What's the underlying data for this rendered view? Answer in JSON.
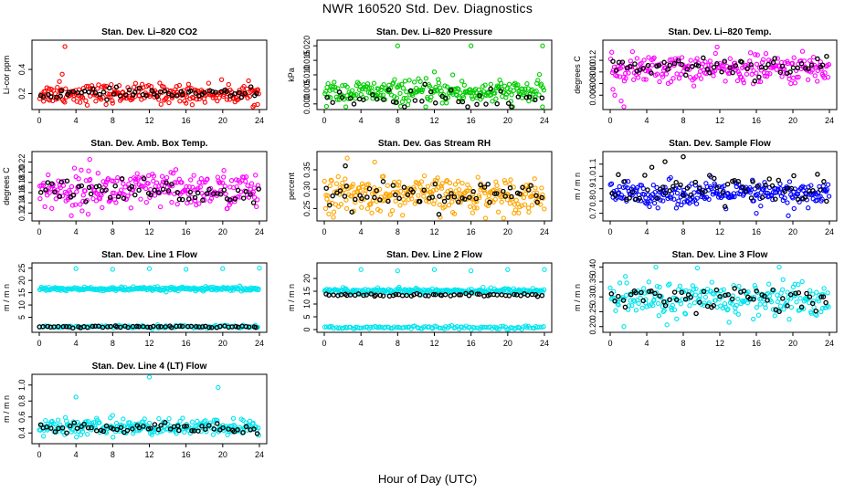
{
  "title": "NWR  160520  Std. Dev. Diagnostics",
  "xlabel": "Hour of Day (UTC)",
  "chart_data": [
    {
      "type": "scatter",
      "title": "Stan. Dev. Li–820 CO2",
      "ylabel": "Li-cor ppm",
      "xlim": [
        0,
        24
      ],
      "ylim": [
        0.09,
        0.62
      ],
      "xticks": [
        0,
        4,
        8,
        12,
        16,
        20,
        24
      ],
      "yticks": [
        0.2,
        0.4
      ],
      "series": [
        {
          "color": "#ff0000",
          "base": 0.2,
          "spread": 0.04,
          "n": 240,
          "outliers": [
            [
              2.8,
              0.59
            ],
            [
              2.5,
              0.36
            ],
            [
              2.2,
              0.3
            ],
            [
              8,
              0.12
            ],
            [
              16,
              0.12
            ],
            [
              23.8,
              0.11
            ]
          ]
        },
        {
          "color": "#000000",
          "base": 0.2,
          "spread": 0.02,
          "n": 60,
          "outliers": []
        }
      ]
    },
    {
      "type": "scatter",
      "title": "Stan. Dev. Li–820 Pressure",
      "ylabel": "kPa",
      "xlim": [
        0,
        24
      ],
      "ylim": [
        -0.001,
        0.021
      ],
      "xticks": [
        0,
        4,
        8,
        12,
        16,
        20,
        24
      ],
      "yticks": [
        0.0,
        0.005,
        0.01,
        0.015,
        0.02
      ],
      "series": [
        {
          "color": "#00cc00",
          "base": 0.004,
          "spread": 0.002,
          "n": 260,
          "outliers": [
            [
              8,
              0.02
            ],
            [
              16,
              0.02
            ],
            [
              23.8,
              0.02
            ],
            [
              12,
              0.011
            ],
            [
              14,
              0.01
            ]
          ]
        },
        {
          "color": "#000000",
          "base": 0.002,
          "spread": 0.002,
          "n": 40,
          "outliers": []
        }
      ]
    },
    {
      "type": "scatter",
      "title": "Stan. Dev. Li–820 Temp.",
      "ylabel": "degrees C",
      "xlim": [
        0,
        24
      ],
      "ylim": [
        0.004,
        0.015
      ],
      "xticks": [
        0,
        4,
        8,
        12,
        16,
        20,
        24
      ],
      "yticks": [
        0.006,
        0.008,
        0.01,
        0.012
      ],
      "series": [
        {
          "color": "#ff00ff",
          "base": 0.0105,
          "spread": 0.0012,
          "n": 240,
          "outliers": [
            [
              0.5,
              0.006
            ],
            [
              1.2,
              0.005
            ],
            [
              1.5,
              0.004
            ],
            [
              0.3,
              0.007
            ]
          ]
        },
        {
          "color": "#000000",
          "base": 0.011,
          "spread": 0.0009,
          "n": 60,
          "outliers": []
        }
      ]
    },
    {
      "type": "scatter",
      "title": "Stan. Dev. Amb. Box Temp.",
      "ylabel": "degrees C",
      "xlim": [
        0,
        24
      ],
      "ylim": [
        0.11,
        0.235
      ],
      "xticks": [
        0,
        4,
        8,
        12,
        16,
        20,
        24
      ],
      "yticks": [
        0.12,
        0.14,
        0.16,
        0.18,
        0.2,
        0.22
      ],
      "series": [
        {
          "color": "#ff00ff",
          "base": 0.165,
          "spread": 0.018,
          "n": 260,
          "outliers": [
            [
              5.5,
              0.225
            ],
            [
              3.5,
              0.115
            ],
            [
              10,
              0.13
            ]
          ]
        },
        {
          "color": "#000000",
          "base": 0.16,
          "spread": 0.012,
          "n": 60,
          "outliers": []
        }
      ]
    },
    {
      "type": "scatter",
      "title": "Stan. Dev. Gas Stream RH",
      "ylabel": "percent",
      "xlim": [
        0,
        24
      ],
      "ylim": [
        0.225,
        0.39
      ],
      "xticks": [
        0,
        4,
        8,
        12,
        16,
        20,
        24
      ],
      "yticks": [
        0.25,
        0.3,
        0.35
      ],
      "series": [
        {
          "color": "#ffa500",
          "base": 0.285,
          "spread": 0.022,
          "n": 280,
          "outliers": [
            [
              5.5,
              0.37
            ],
            [
              2.5,
              0.38
            ],
            [
              14,
              0.24
            ]
          ]
        },
        {
          "color": "#000000",
          "base": 0.285,
          "spread": 0.015,
          "n": 60,
          "outliers": [
            [
              2.3,
              0.36
            ],
            [
              12.5,
              0.235
            ]
          ]
        }
      ]
    },
    {
      "type": "scatter",
      "title": "Stan. Dev. Sample Flow",
      "ylabel": "m / m n",
      "xlim": [
        0,
        24
      ],
      "ylim": [
        0.66,
        1.18
      ],
      "xticks": [
        0,
        4,
        8,
        12,
        16,
        20,
        24
      ],
      "yticks": [
        0.7,
        0.8,
        0.9,
        1.0,
        1.1
      ],
      "series": [
        {
          "color": "#0000ff",
          "base": 0.86,
          "spread": 0.05,
          "n": 260,
          "outliers": [
            [
              19.5,
              0.68
            ],
            [
              16,
              0.7
            ]
          ]
        },
        {
          "color": "#000000",
          "base": 0.9,
          "spread": 0.07,
          "n": 60,
          "outliers": [
            [
              8,
              1.16
            ],
            [
              6,
              1.12
            ]
          ]
        }
      ]
    },
    {
      "type": "scatter",
      "title": "Stan. Dev. Line 1 Flow",
      "ylabel": "m / m n",
      "xlim": [
        0,
        24
      ],
      "ylim": [
        0,
        26
      ],
      "xticks": [
        0,
        4,
        8,
        12,
        16,
        20,
        24
      ],
      "yticks": [
        5,
        10,
        15,
        20,
        25
      ],
      "series": [
        {
          "color": "#00e5ee",
          "base": 16.5,
          "spread": 0.4,
          "n": 240,
          "outliers": [
            [
              4,
              24.8
            ],
            [
              8,
              24.5
            ],
            [
              12,
              24.8
            ],
            [
              16,
              24.5
            ],
            [
              20,
              24.8
            ],
            [
              24,
              25
            ]
          ]
        },
        {
          "color": "#00e5ee",
          "base": 1.2,
          "spread": 0.3,
          "n": 120,
          "outliers": []
        },
        {
          "color": "#000000",
          "base": 1.2,
          "spread": 0.2,
          "n": 60,
          "outliers": []
        }
      ]
    },
    {
      "type": "scatter",
      "title": "Stan. Dev. Line 2 Flow",
      "ylabel": "m / m n",
      "xlim": [
        0,
        24
      ],
      "ylim": [
        0,
        25
      ],
      "xticks": [
        0,
        4,
        8,
        12,
        16,
        20,
        24
      ],
      "yticks": [
        0,
        5,
        10,
        15,
        20
      ],
      "series": [
        {
          "color": "#00e5ee",
          "base": 15.2,
          "spread": 0.5,
          "n": 240,
          "outliers": [
            [
              4,
              23.5
            ],
            [
              8,
              23
            ],
            [
              12,
              23.5
            ],
            [
              16,
              23
            ],
            [
              20,
              23.5
            ],
            [
              24,
              23.5
            ]
          ]
        },
        {
          "color": "#00e5ee",
          "base": 0.8,
          "spread": 0.3,
          "n": 120,
          "outliers": []
        },
        {
          "color": "#000000",
          "base": 13.6,
          "spread": 0.3,
          "n": 60,
          "outliers": []
        }
      ]
    },
    {
      "type": "scatter",
      "title": "Stan. Dev. Line 3 Flow",
      "ylabel": "m / m n",
      "xlim": [
        0,
        24
      ],
      "ylim": [
        0.19,
        0.405
      ],
      "xticks": [
        0,
        4,
        8,
        12,
        16,
        20,
        24
      ],
      "yticks": [
        0.2,
        0.25,
        0.3,
        0.35,
        0.4
      ],
      "series": [
        {
          "color": "#00e5ee",
          "base": 0.29,
          "spread": 0.03,
          "n": 240,
          "outliers": [
            [
              1.5,
              0.2
            ],
            [
              18.5,
              0.4
            ],
            [
              5,
              0.4
            ]
          ]
        },
        {
          "color": "#000000",
          "base": 0.295,
          "spread": 0.022,
          "n": 60,
          "outliers": []
        }
      ]
    },
    {
      "type": "scatter",
      "title": "Stan. Dev. Line 4 (LT) Flow",
      "ylabel": "m / m n",
      "xlim": [
        0,
        24
      ],
      "ylim": [
        0.3,
        1.1
      ],
      "xticks": [
        0,
        4,
        8,
        12,
        16,
        20,
        24
      ],
      "yticks": [
        0.4,
        0.6,
        0.8,
        1.0
      ],
      "series": [
        {
          "color": "#00e5ee",
          "base": 0.47,
          "spread": 0.05,
          "n": 240,
          "outliers": [
            [
              4,
              0.85
            ],
            [
              12,
              1.1
            ],
            [
              19.5,
              0.97
            ],
            [
              8,
              0.62
            ]
          ]
        },
        {
          "color": "#000000",
          "base": 0.46,
          "spread": 0.04,
          "n": 60,
          "outliers": []
        }
      ]
    }
  ]
}
